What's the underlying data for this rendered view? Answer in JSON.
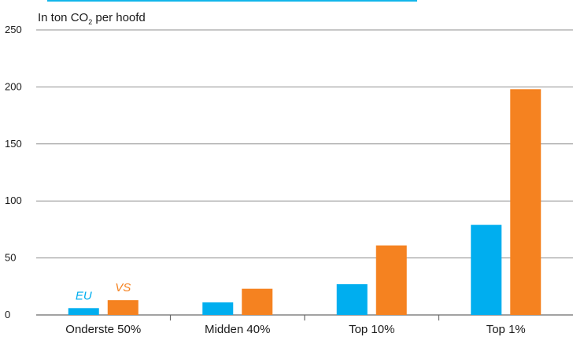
{
  "chart_data": {
    "type": "bar",
    "unit_label": "In ton CO",
    "unit_label_sub": "2",
    "unit_label_suffix": " per hoofd",
    "categories": [
      "Onderste 50%",
      "Midden 40%",
      "Top 10%",
      "Top 1%"
    ],
    "series": [
      {
        "name": "EU",
        "values": [
          6,
          11,
          27,
          79
        ],
        "color": "#00aeef"
      },
      {
        "name": "VS",
        "values": [
          13,
          23,
          61,
          198
        ],
        "color": "#f58220"
      }
    ],
    "ylim": [
      0,
      250
    ],
    "yticks": [
      0,
      50,
      100,
      150,
      200,
      250
    ],
    "grid": true
  }
}
